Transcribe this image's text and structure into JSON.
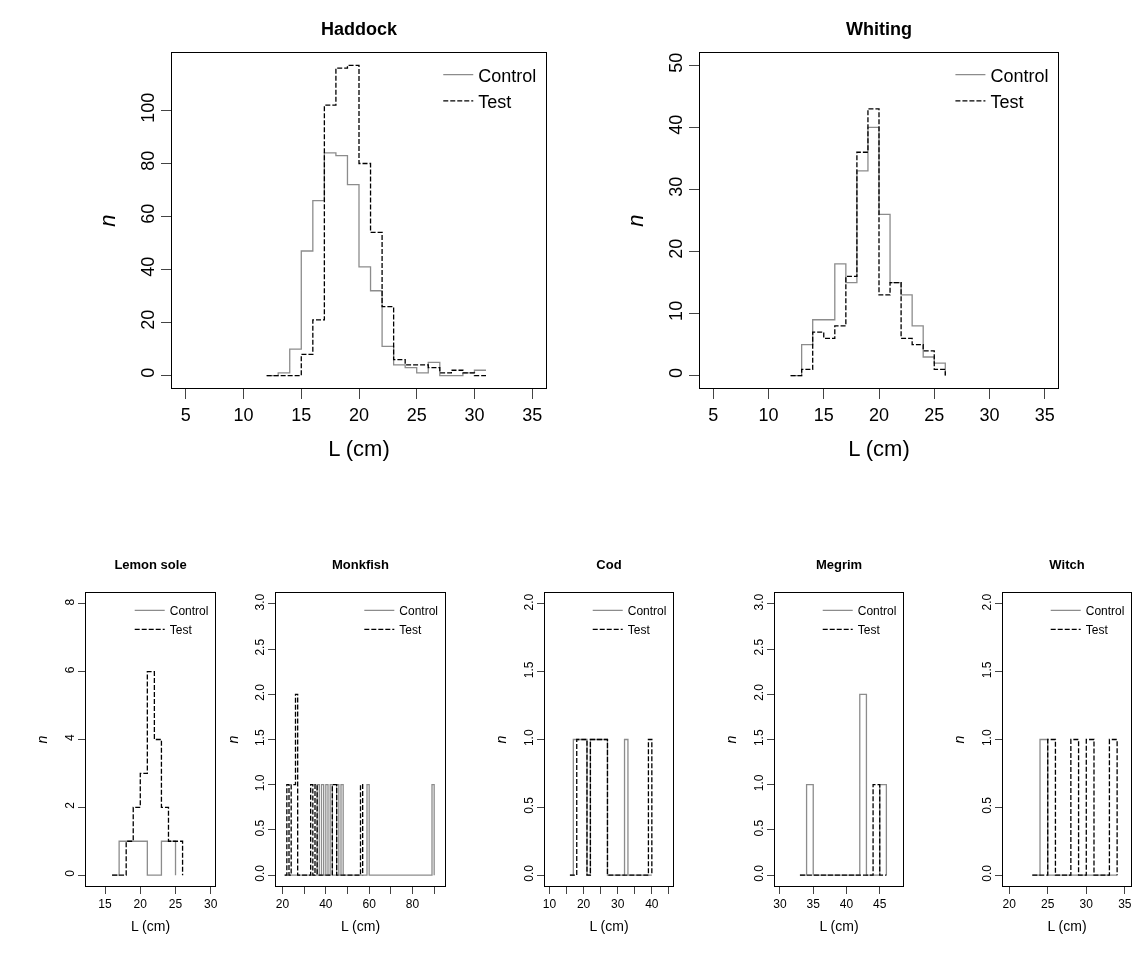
{
  "chart_data": [
    {
      "type": "step",
      "title": "Haddock",
      "xlabel": "L (cm)",
      "ylabel": "n",
      "legend": "top right",
      "xlim": [
        3.8,
        36.2
      ],
      "xticks": [
        5,
        10,
        15,
        20,
        25,
        30,
        35
      ],
      "ylim": [
        -4.7,
        121.7
      ],
      "yticks": [
        0,
        20,
        40,
        60,
        80,
        100
      ],
      "series": [
        {
          "name": "Control",
          "color": "#8c8c8c",
          "line_style": "solid",
          "x": [
            12,
            13,
            14,
            15,
            16,
            17,
            18,
            19,
            20,
            21,
            22,
            23,
            24,
            25,
            26,
            27,
            28,
            29,
            30,
            31
          ],
          "values": [
            0,
            1,
            10,
            47,
            66,
            84,
            83,
            72,
            41,
            32,
            11,
            4,
            3,
            1,
            5,
            0,
            0,
            1,
            2,
            2
          ]
        },
        {
          "name": "Test",
          "color": "#000000",
          "line_style": "dashed",
          "x": [
            12,
            13,
            14,
            15,
            16,
            17,
            18,
            19,
            20,
            21,
            22,
            23,
            24,
            25,
            26,
            27,
            28,
            29,
            30,
            31
          ],
          "values": [
            0,
            0,
            0,
            8,
            21,
            102,
            116,
            117,
            80,
            54,
            26,
            6,
            4,
            4,
            3,
            1,
            2,
            1,
            0,
            0
          ]
        }
      ]
    },
    {
      "type": "step",
      "title": "Whiting",
      "xlabel": "L (cm)",
      "ylabel": "n",
      "legend": "top right",
      "xlim": [
        3.8,
        36.2
      ],
      "xticks": [
        5,
        10,
        15,
        20,
        25,
        30,
        35
      ],
      "ylim": [
        -2,
        52
      ],
      "yticks": [
        0,
        10,
        20,
        30,
        40,
        50
      ],
      "series": [
        {
          "name": "Control",
          "color": "#8c8c8c",
          "line_style": "solid",
          "x": [
            12,
            13,
            14,
            15,
            16,
            17,
            18,
            19,
            20,
            21,
            22,
            23,
            24,
            25,
            26
          ],
          "values": [
            0,
            5,
            9,
            9,
            18,
            15,
            33,
            40,
            26,
            15,
            13,
            8,
            3,
            2,
            0
          ]
        },
        {
          "name": "Test",
          "color": "#000000",
          "line_style": "dashed",
          "x": [
            12,
            13,
            14,
            15,
            16,
            17,
            18,
            19,
            20,
            21,
            22,
            23,
            24,
            25,
            26
          ],
          "values": [
            0,
            1,
            7,
            6,
            8,
            16,
            36,
            43,
            13,
            15,
            6,
            5,
            4,
            1,
            0
          ]
        }
      ]
    },
    {
      "type": "step",
      "title": "Lemon sole",
      "xlabel": "L (cm)",
      "ylabel": "n",
      "legend": "top right",
      "xlim": [
        12.3,
        30.6
      ],
      "xticks": [
        15,
        20,
        25,
        30
      ],
      "ylim": [
        -0.32,
        8.32
      ],
      "yticks": [
        0,
        2,
        4,
        6,
        8
      ],
      "series": [
        {
          "name": "Control",
          "color": "#8c8c8c",
          "line_style": "solid",
          "x": [
            16,
            17,
            18,
            19,
            20,
            21,
            22,
            23,
            24,
            25
          ],
          "values": [
            0,
            1,
            1,
            1,
            1,
            0,
            0,
            1,
            1,
            0
          ]
        },
        {
          "name": "Test",
          "color": "#000000",
          "line_style": "dashed",
          "x": [
            16,
            17,
            18,
            19,
            20,
            21,
            22,
            23,
            24,
            25,
            26
          ],
          "values": [
            0,
            0,
            1,
            2,
            3,
            6,
            4,
            2,
            1,
            1,
            0
          ]
        }
      ]
    },
    {
      "type": "step",
      "title": "Monkfish",
      "xlabel": "L (cm)",
      "ylabel": "n",
      "legend": "top right",
      "xlim": [
        17,
        95
      ],
      "xticks": [
        20,
        {
          "value": 30,
          "label": null
        },
        40,
        {
          "value": 50,
          "label": null
        },
        60,
        {
          "value": 70,
          "label": null
        },
        80,
        {
          "value": 90,
          "label": null
        }
      ],
      "ylim": [
        -0.12,
        3.12
      ],
      "yticks": [
        {
          "value": 0,
          "label": "0.0"
        },
        0.5,
        {
          "value": 1,
          "label": "1.0"
        },
        1.5,
        {
          "value": 2,
          "label": "2.0"
        },
        2.5,
        {
          "value": 3,
          "label": "3.0"
        }
      ],
      "series": [
        {
          "name": "Control",
          "color": "#8c8c8c",
          "line_style": "solid",
          "x": [
            21,
            36,
            37,
            38,
            39,
            40,
            41,
            42,
            43,
            45,
            46,
            47,
            48,
            59,
            60,
            89,
            90
          ],
          "values": [
            0,
            1,
            0,
            1,
            0,
            1,
            0,
            1,
            0,
            1,
            0,
            1,
            0,
            1,
            0,
            1,
            0
          ]
        },
        {
          "name": "Test",
          "color": "#000000",
          "line_style": "dashed",
          "x": [
            21,
            22,
            23,
            24,
            26,
            27,
            33,
            34,
            35,
            36,
            43,
            45,
            56,
            57
          ],
          "values": [
            0,
            1,
            0,
            1,
            2,
            0,
            1,
            0,
            1,
            0,
            1,
            0,
            1,
            0
          ]
        }
      ]
    },
    {
      "type": "step",
      "title": "Cod",
      "xlabel": "L (cm)",
      "ylabel": "n",
      "legend": "top right",
      "xlim": [
        8.7,
        46.2
      ],
      "xticks": [
        10,
        {
          "value": 15,
          "label": null
        },
        20,
        {
          "value": 25,
          "label": null
        },
        30,
        {
          "value": 35,
          "label": null
        },
        40,
        {
          "value": 45,
          "label": null
        }
      ],
      "ylim": [
        -0.08,
        2.08
      ],
      "yticks": [
        {
          "value": 0,
          "label": "0.0"
        },
        0.5,
        {
          "value": 1,
          "label": "1.0"
        },
        1.5,
        {
          "value": 2,
          "label": "2.0"
        }
      ],
      "series": [
        {
          "name": "Control",
          "color": "#8c8c8c",
          "line_style": "solid",
          "x": [
            16,
            17,
            21,
            22,
            27,
            32,
            33,
            40
          ],
          "values": [
            0,
            1,
            0,
            1,
            0,
            1,
            0,
            0
          ]
        },
        {
          "name": "Test",
          "color": "#000000",
          "line_style": "dashed",
          "x": [
            16,
            18,
            21,
            22,
            27,
            39,
            40
          ],
          "values": [
            0,
            1,
            0,
            1,
            0,
            1,
            0
          ]
        }
      ]
    },
    {
      "type": "step",
      "title": "Megrim",
      "xlabel": "L (cm)",
      "ylabel": "n",
      "legend": "top right",
      "xlim": [
        29.25,
        48.5
      ],
      "xticks": [
        30,
        35,
        40,
        45
      ],
      "ylim": [
        -0.12,
        3.12
      ],
      "yticks": [
        {
          "value": 0,
          "label": "0.0"
        },
        0.5,
        {
          "value": 1,
          "label": "1.0"
        },
        1.5,
        {
          "value": 2,
          "label": "2.0"
        },
        2.5,
        {
          "value": 3,
          "label": "3.0"
        }
      ],
      "series": [
        {
          "name": "Control",
          "color": "#8c8c8c",
          "line_style": "solid",
          "x": [
            33,
            34,
            35,
            42,
            43,
            45,
            46
          ],
          "values": [
            0,
            1,
            0,
            2,
            0,
            1,
            0
          ]
        },
        {
          "name": "Test",
          "color": "#000000",
          "line_style": "dashed",
          "x": [
            33,
            44,
            45,
            46
          ],
          "values": [
            0,
            1,
            0,
            0
          ]
        }
      ]
    },
    {
      "type": "step",
      "title": "Witch",
      "xlabel": "L (cm)",
      "ylabel": "n",
      "legend": "top right",
      "xlim": [
        19.2,
        35.8
      ],
      "xticks": [
        20,
        25,
        30,
        35
      ],
      "ylim": [
        -0.08,
        2.08
      ],
      "yticks": [
        {
          "value": 0,
          "label": "0.0"
        },
        0.5,
        {
          "value": 1,
          "label": "1.0"
        },
        1.5,
        {
          "value": 2,
          "label": "2.0"
        }
      ],
      "series": [
        {
          "name": "Control",
          "color": "#8c8c8c",
          "line_style": "solid",
          "x": [
            23,
            24,
            25,
            34
          ],
          "values": [
            0,
            1,
            0,
            0
          ]
        },
        {
          "name": "Test",
          "color": "#000000",
          "line_style": "dashed",
          "x": [
            23,
            25,
            26,
            28,
            29,
            30,
            31,
            33,
            34
          ],
          "values": [
            0,
            1,
            0,
            1,
            0,
            1,
            0,
            1,
            0
          ]
        }
      ]
    }
  ]
}
